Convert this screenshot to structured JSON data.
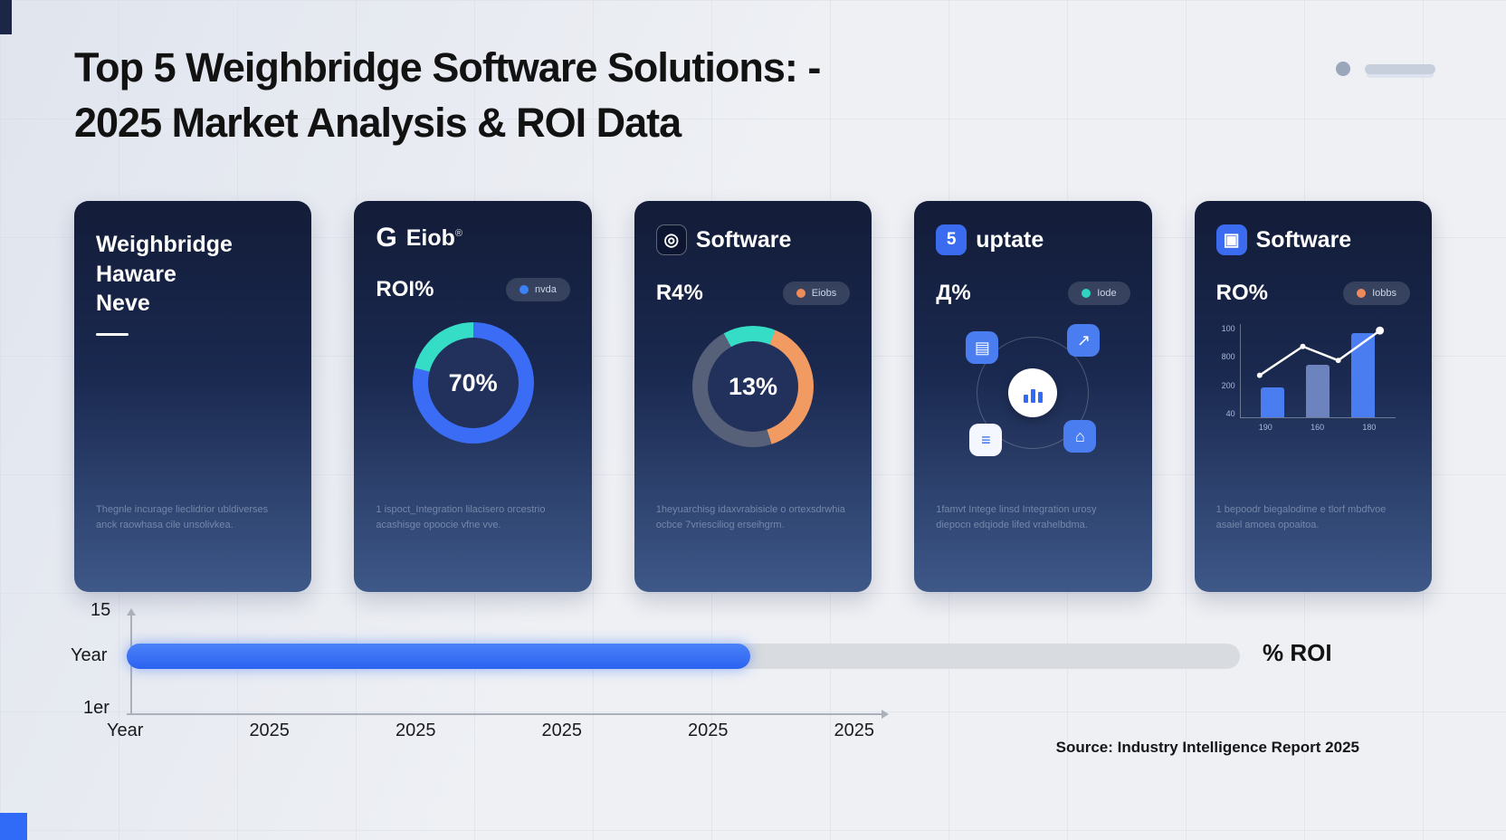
{
  "page": {
    "title_line1": "Top 5 Weighbridge Software Solutions: -",
    "title_line2": "2025 Market Analysis & ROI Data",
    "source": "Source: Industry Intelligence Report 2025"
  },
  "colors": {
    "accent_blue": "#2f6bf7",
    "teal": "#2ed3c2",
    "orange": "#ef8a5a",
    "card_bg_top": "#131c38",
    "card_bg_bottom": "#3e5888"
  },
  "cards": [
    {
      "title_lines": [
        "Weighbridge",
        "Haware",
        "Neve"
      ],
      "description": "Thegnle incurage lieclidrior ubldiverses anck raowhasa cile unsolivkea."
    },
    {
      "logo_glyph": "G",
      "name": "Eiob",
      "reg": "®",
      "roi_label": "ROI%",
      "badge": {
        "text": "nvda",
        "dot_color": "#3b82f6"
      },
      "description": "1 ispoct_Integration lilacisero orcestrio acashisge opoocie vfne vve."
    },
    {
      "icon_glyph": "◎",
      "name": "Software",
      "roi_label": "R4%",
      "badge": {
        "text": "Eiobs",
        "dot_color": "#ef8a5a"
      },
      "description": "1heyuarchisg idaxvrabisicle o ortexsdrwhia ocbce 7vriesciliog erseihgrm."
    },
    {
      "icon_glyph": "5",
      "name": "uptate",
      "roi_label": "Д%",
      "badge": {
        "text": "Iode",
        "dot_color": "#2ed3c2"
      },
      "diagram": {
        "tl": "▤",
        "tr": "↗",
        "bl": "≡",
        "br": "⌂"
      },
      "description": "1famvt Intege linsd Integration urosy diepocn edqiode lifed vrahelbdma."
    },
    {
      "icon_glyph": "▣",
      "name": "Software",
      "roi_label": "RO%",
      "badge": {
        "text": "Iobbs",
        "dot_color": "#ef8a5a"
      },
      "description": "1 bepoodr biegalodime e tlorf mbdfvoe asaiel amoea opoaitoa."
    }
  ],
  "chart_data": [
    {
      "id": "donut-eiob",
      "type": "pie",
      "style": "donut",
      "center_label": "70%",
      "segments": [
        {
          "label": "primary",
          "value": 79,
          "color": "#3b6cf6"
        },
        {
          "label": "secondary",
          "value": 21,
          "color": "#35dcc6"
        }
      ]
    },
    {
      "id": "donut-software",
      "type": "pie",
      "style": "donut",
      "center_label": "13%",
      "segments": [
        {
          "label": "teal-top",
          "value": 6,
          "color": "#35dcc6"
        },
        {
          "label": "orange",
          "value": 39,
          "color": "#f19a62"
        },
        {
          "label": "slate",
          "value": 47,
          "color": "#566078"
        },
        {
          "label": "teal-left",
          "value": 8,
          "color": "#35dcc6"
        }
      ]
    },
    {
      "id": "mini-bar-line",
      "type": "bar",
      "categories": [
        "190",
        "160",
        "180"
      ],
      "values": [
        32,
        56,
        90
      ],
      "colors": [
        "#4a7df0",
        "#6c83bd",
        "#4a7df0"
      ],
      "y_labels": [
        "100",
        "800",
        "200",
        "40"
      ],
      "line_points": [
        [
          12,
          55
        ],
        [
          40,
          24
        ],
        [
          63,
          39
        ],
        [
          90,
          7
        ]
      ]
    },
    {
      "id": "roi-timeline",
      "type": "bar",
      "orientation": "horizontal",
      "progress_percent": 56,
      "label": "% ROI",
      "y_labels": [
        "15",
        "Year",
        "1er"
      ],
      "x_labels": [
        "Year",
        "2025",
        "2025",
        "2025",
        "2025",
        "2025"
      ]
    }
  ]
}
